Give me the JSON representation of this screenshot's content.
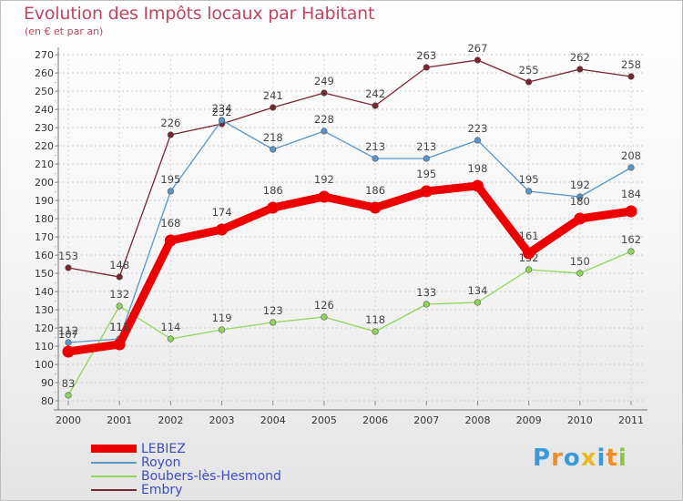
{
  "chart_data": {
    "type": "line",
    "title": "Evolution des Impôts locaux par Habitant",
    "subtitle": "(en € et par an)",
    "categories": [
      "2000",
      "2001",
      "2002",
      "2003",
      "2004",
      "2005",
      "2006",
      "2007",
      "2008",
      "2009",
      "2010",
      "2011"
    ],
    "ylim": [
      80,
      270
    ],
    "yticks": [
      80,
      90,
      100,
      110,
      120,
      130,
      140,
      150,
      160,
      170,
      180,
      190,
      200,
      210,
      220,
      230,
      240,
      250,
      260,
      270
    ],
    "series": [
      {
        "name": "Embry",
        "color": "#7a2430",
        "values": [
          153,
          148,
          226,
          232,
          241,
          249,
          242,
          263,
          267,
          255,
          262,
          258
        ]
      },
      {
        "name": "Royon",
        "color": "#5a96c8",
        "values": [
          112,
          114,
          195,
          234,
          218,
          228,
          213,
          213,
          223,
          195,
          192,
          208
        ]
      },
      {
        "name": "Boubers-lès-Hesmond",
        "color": "#8ed65a",
        "values": [
          83,
          132,
          114,
          119,
          123,
          126,
          118,
          133,
          134,
          152,
          150,
          162
        ]
      },
      {
        "name": "LEBIEZ",
        "color": "#ee0000",
        "values": [
          107,
          111,
          168,
          174,
          186,
          192,
          186,
          195,
          198,
          161,
          180,
          184
        ]
      }
    ],
    "legend_order": [
      "LEBIEZ",
      "Royon",
      "Boubers-lès-Hesmond",
      "Embry"
    ]
  },
  "logo": {
    "letters": [
      "P",
      "r",
      "o",
      "x",
      "i",
      "t",
      "i"
    ],
    "colors": [
      "#3a9ad9",
      "#f28c28",
      "#3a9ad9",
      "#e8b820",
      "#3a9ad9",
      "#f28c28",
      "#8bc43f"
    ]
  }
}
